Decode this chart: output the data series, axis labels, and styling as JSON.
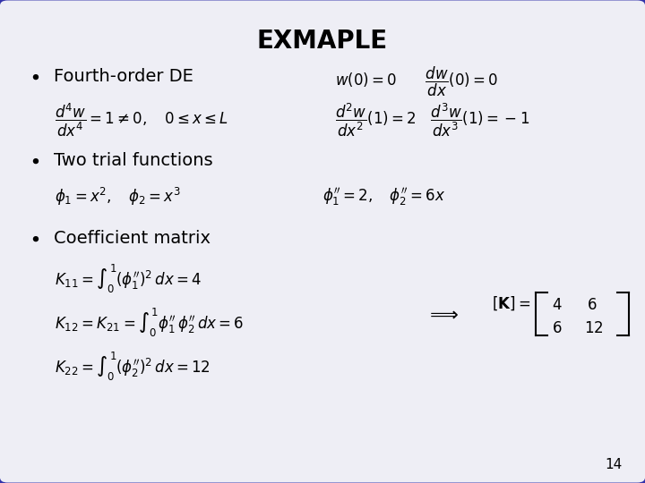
{
  "title": "EXMAPLE",
  "background_color": "#eeeef5",
  "border_color": "#3333aa",
  "text_color": "#000000",
  "title_fontsize": 20,
  "body_fontsize": 14,
  "math_fontsize": 12,
  "page_number": "14",
  "bullet1": "Fourth-order DE",
  "bullet2": "Two trial functions",
  "bullet3": "Coefficient matrix"
}
